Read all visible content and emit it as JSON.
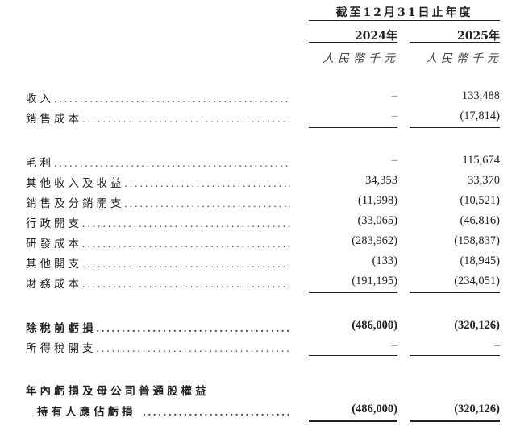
{
  "header": {
    "period": "截至12月31日止年度",
    "years": [
      "2024年",
      "2025年"
    ],
    "units": [
      "人民幣千元",
      "人民幣千元"
    ]
  },
  "rows": [
    {
      "label": "收入",
      "v2024": "–",
      "v2025": "133,488"
    },
    {
      "label": "銷售成本",
      "v2024": "–",
      "v2025": "(17,814)"
    },
    {
      "label": "毛利",
      "v2024": "–",
      "v2025": "115,674"
    },
    {
      "label": "其他收入及收益",
      "v2024": "34,353",
      "v2025": "33,370"
    },
    {
      "label": "銷售及分銷開支",
      "v2024": "(11,998)",
      "v2025": "(10,521)"
    },
    {
      "label": "行政開支",
      "v2024": "(33,065)",
      "v2025": "(46,816)"
    },
    {
      "label": "研發成本",
      "v2024": "(283,962)",
      "v2025": "(158,837)"
    },
    {
      "label": "其他開支",
      "v2024": "(133)",
      "v2025": "(18,945)"
    },
    {
      "label": "財務成本",
      "v2024": "(191,195)",
      "v2025": "(234,051)"
    },
    {
      "label": "除稅前虧損",
      "v2024": "(486,000)",
      "v2025": "(320,126)"
    },
    {
      "label": "所得稅開支",
      "v2024": "–",
      "v2025": "–"
    }
  ],
  "final": {
    "label_line1": "年內虧損及母公司普通股權益",
    "label_line2": "持有人應佔虧損",
    "v2024": "(486,000)",
    "v2025": "(320,126)"
  },
  "leader": "................................................"
}
